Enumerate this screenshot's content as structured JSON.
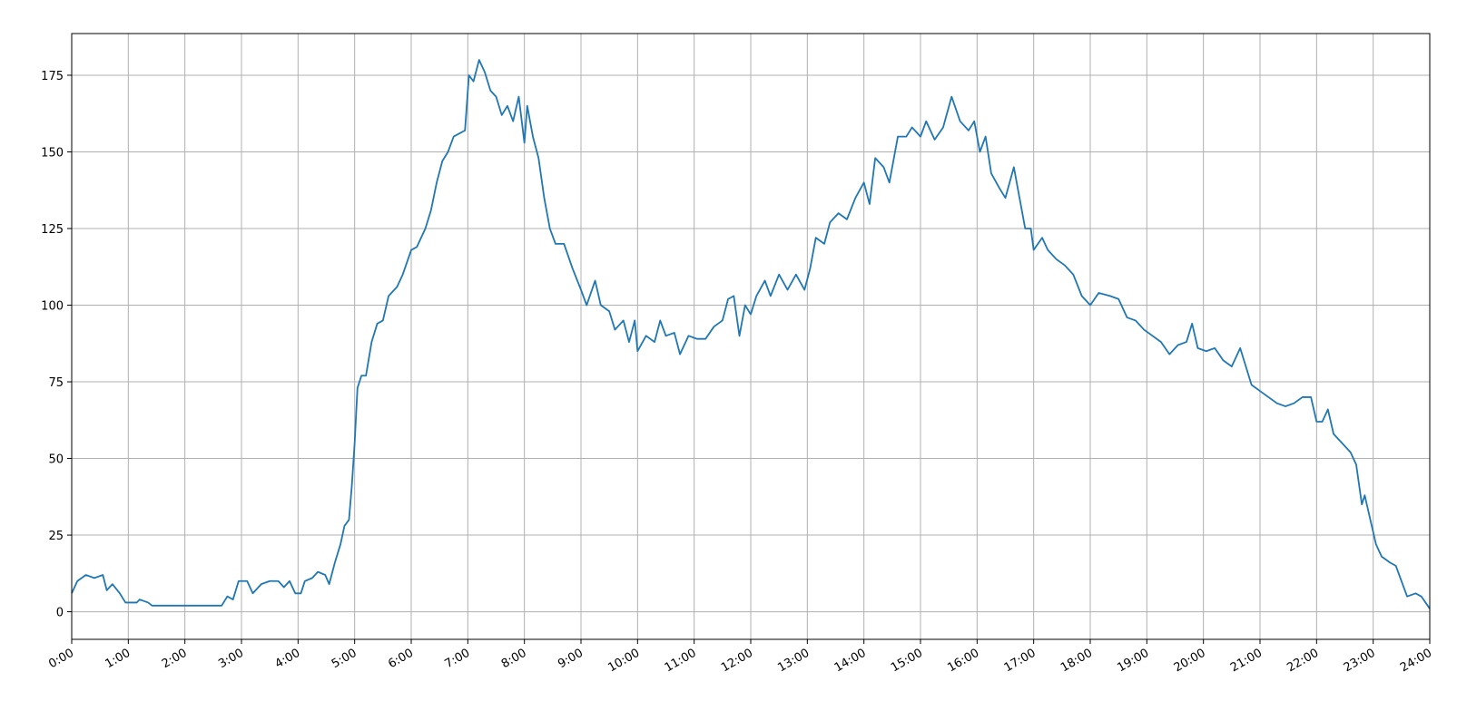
{
  "chart_data": {
    "type": "line",
    "grid": true,
    "xlim": [
      0,
      24
    ],
    "ylim": [
      -9,
      188.6
    ],
    "xticks": [
      {
        "value": 0,
        "label": "0:00"
      },
      {
        "value": 1,
        "label": "1:00"
      },
      {
        "value": 2,
        "label": "2:00"
      },
      {
        "value": 3,
        "label": "3:00"
      },
      {
        "value": 4,
        "label": "4:00"
      },
      {
        "value": 5,
        "label": "5:00"
      },
      {
        "value": 6,
        "label": "6:00"
      },
      {
        "value": 7,
        "label": "7:00"
      },
      {
        "value": 8,
        "label": "8:00"
      },
      {
        "value": 9,
        "label": "9:00"
      },
      {
        "value": 10,
        "label": "10:00"
      },
      {
        "value": 11,
        "label": "11:00"
      },
      {
        "value": 12,
        "label": "12:00"
      },
      {
        "value": 13,
        "label": "13:00"
      },
      {
        "value": 14,
        "label": "14:00"
      },
      {
        "value": 15,
        "label": "15:00"
      },
      {
        "value": 16,
        "label": "16:00"
      },
      {
        "value": 17,
        "label": "17:00"
      },
      {
        "value": 18,
        "label": "18:00"
      },
      {
        "value": 19,
        "label": "19:00"
      },
      {
        "value": 20,
        "label": "20:00"
      },
      {
        "value": 21,
        "label": "21:00"
      },
      {
        "value": 22,
        "label": "22:00"
      },
      {
        "value": 23,
        "label": "23:00"
      },
      {
        "value": 24,
        "label": "24:00"
      }
    ],
    "yticks": [
      0,
      25,
      50,
      75,
      100,
      125,
      150,
      175
    ],
    "series": [
      {
        "color": "#1f77b4",
        "x": [
          0,
          0.1,
          0.25,
          0.4,
          0.55,
          0.62,
          0.72,
          0.85,
          0.95,
          1.15,
          1.2,
          1.35,
          1.42,
          2.65,
          2.75,
          2.85,
          2.95,
          3.1,
          3.2,
          3.35,
          3.5,
          3.65,
          3.75,
          3.85,
          3.95,
          4.05,
          4.12,
          4.25,
          4.35,
          4.48,
          4.55,
          4.65,
          4.75,
          4.82,
          4.9,
          4.95,
          5.0,
          5.05,
          5.12,
          5.2,
          5.3,
          5.4,
          5.5,
          5.6,
          5.75,
          5.85,
          6.0,
          6.1,
          6.25,
          6.35,
          6.45,
          6.55,
          6.65,
          6.75,
          6.85,
          6.95,
          7.02,
          7.1,
          7.2,
          7.3,
          7.4,
          7.5,
          7.6,
          7.7,
          7.8,
          7.9,
          8.0,
          8.05,
          8.15,
          8.25,
          8.35,
          8.45,
          8.55,
          8.7,
          8.85,
          9.0,
          9.1,
          9.25,
          9.35,
          9.5,
          9.6,
          9.75,
          9.85,
          9.95,
          10.0,
          10.15,
          10.3,
          10.4,
          10.5,
          10.65,
          10.75,
          10.9,
          11.05,
          11.2,
          11.35,
          11.5,
          11.6,
          11.7,
          11.8,
          11.9,
          12.0,
          12.1,
          12.25,
          12.35,
          12.5,
          12.65,
          12.8,
          12.95,
          13.05,
          13.15,
          13.3,
          13.4,
          13.55,
          13.7,
          13.85,
          14.0,
          14.1,
          14.2,
          14.35,
          14.45,
          14.6,
          14.75,
          14.85,
          15.0,
          15.1,
          15.25,
          15.4,
          15.55,
          15.7,
          15.85,
          15.95,
          16.05,
          16.15,
          16.25,
          16.4,
          16.5,
          16.65,
          16.75,
          16.85,
          16.95,
          17.0,
          17.15,
          17.25,
          17.4,
          17.55,
          17.7,
          17.85,
          18.0,
          18.15,
          18.35,
          18.5,
          18.65,
          18.8,
          18.95,
          19.1,
          19.25,
          19.4,
          19.55,
          19.7,
          19.8,
          19.9,
          20.05,
          20.2,
          20.35,
          20.5,
          20.65,
          20.75,
          20.85,
          21.0,
          21.15,
          21.3,
          21.45,
          21.6,
          21.75,
          21.9,
          22.0,
          22.1,
          22.2,
          22.3,
          22.45,
          22.6,
          22.7,
          22.8,
          22.85,
          22.95,
          23.05,
          23.15,
          23.3,
          23.4,
          23.5,
          23.6,
          23.75,
          23.85,
          24.0
        ],
        "values": [
          6,
          10,
          12,
          11,
          12,
          7,
          9,
          6,
          3,
          3,
          4,
          3,
          2,
          2,
          5,
          4,
          10,
          10,
          6,
          9,
          10,
          10,
          8,
          10,
          6,
          6,
          10,
          11,
          13,
          12,
          9,
          16,
          22,
          28,
          30,
          41,
          55,
          73,
          77,
          77,
          88,
          94,
          95,
          103,
          106,
          110,
          118,
          119,
          125,
          131,
          140,
          147,
          150,
          155,
          156,
          157,
          175,
          173,
          180,
          176,
          170,
          168,
          162,
          165,
          160,
          168,
          153,
          165,
          155,
          148,
          135,
          125,
          120,
          120,
          112,
          105,
          100,
          108,
          100,
          98,
          92,
          95,
          88,
          95,
          85,
          90,
          88,
          95,
          90,
          91,
          84,
          90,
          89,
          89,
          93,
          95,
          102,
          103,
          90,
          100,
          97,
          103,
          108,
          103,
          110,
          105,
          110,
          105,
          112,
          122,
          120,
          127,
          130,
          128,
          135,
          140,
          133,
          148,
          145,
          140,
          155,
          155,
          158,
          155,
          160,
          154,
          158,
          168,
          160,
          157,
          160,
          150,
          155,
          143,
          138,
          135,
          145,
          135,
          125,
          125,
          118,
          122,
          118,
          115,
          113,
          110,
          103,
          100,
          104,
          103,
          102,
          96,
          95,
          92,
          90,
          88,
          84,
          87,
          88,
          94,
          86,
          85,
          86,
          82,
          80,
          86,
          80,
          74,
          72,
          70,
          68,
          67,
          68,
          70,
          70,
          62,
          62,
          66,
          58,
          55,
          52,
          48,
          35,
          38,
          30,
          22,
          18,
          16,
          15,
          10,
          5,
          6,
          5,
          1
        ]
      }
    ]
  }
}
